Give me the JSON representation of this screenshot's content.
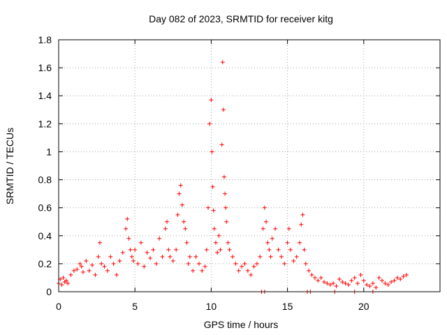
{
  "chart_data": {
    "type": "scatter",
    "title": "Day 082 of 2023, SRMTID for receiver kitg",
    "xlabel": "GPS time / hours",
    "ylabel": "SRMTID / TECUs",
    "xlim": [
      0,
      25
    ],
    "ylim": [
      0,
      1.8
    ],
    "xticks": [
      0,
      5,
      10,
      15,
      20
    ],
    "xtick_labels": [
      "0",
      "5",
      "10",
      "15",
      "20"
    ],
    "yticks": [
      0,
      0.2,
      0.4,
      0.6,
      0.8,
      1,
      1.2,
      1.4,
      1.6,
      1.8
    ],
    "ytick_labels": [
      "0",
      "0.2",
      "0.4",
      "0.6",
      "0.8",
      "1",
      "1.2",
      "1.4",
      "1.6",
      "1.8"
    ],
    "grid": true,
    "marker": "plus",
    "series": [
      {
        "name": "SRMTID",
        "color": "#ff0000",
        "x": [
          0.0,
          0.1,
          0.2,
          0.3,
          0.4,
          0.5,
          0.6,
          0.8,
          1.0,
          1.2,
          1.4,
          1.5,
          1.6,
          1.8,
          2.0,
          2.2,
          2.4,
          2.6,
          2.7,
          2.8,
          3.0,
          3.2,
          3.4,
          3.6,
          3.8,
          4.0,
          4.2,
          4.4,
          4.5,
          4.6,
          4.7,
          4.8,
          4.9,
          5.0,
          5.2,
          5.4,
          5.6,
          5.8,
          6.0,
          6.2,
          6.4,
          6.6,
          6.8,
          7.0,
          7.1,
          7.2,
          7.3,
          7.5,
          7.7,
          7.8,
          7.9,
          8.0,
          8.1,
          8.2,
          8.3,
          8.4,
          8.5,
          8.6,
          8.8,
          9.0,
          9.2,
          9.4,
          9.6,
          9.7,
          9.8,
          9.9,
          10.0,
          10.05,
          10.1,
          10.15,
          10.2,
          10.3,
          10.4,
          10.5,
          10.6,
          10.7,
          10.75,
          10.8,
          10.85,
          10.9,
          10.95,
          11.0,
          11.1,
          11.2,
          11.4,
          11.6,
          11.8,
          12.0,
          12.2,
          12.4,
          12.6,
          12.8,
          13.0,
          13.2,
          13.4,
          13.5,
          13.6,
          13.7,
          13.8,
          13.9,
          14.0,
          14.2,
          14.4,
          14.6,
          14.8,
          15.0,
          15.1,
          15.2,
          15.4,
          15.6,
          15.8,
          15.9,
          16.0,
          16.1,
          16.2,
          16.4,
          16.6,
          16.8,
          17.0,
          17.2,
          17.4,
          17.6,
          17.8,
          18.0,
          18.2,
          18.4,
          18.6,
          18.8,
          19.0,
          19.2,
          19.4,
          19.6,
          19.8,
          20.0,
          20.2,
          20.4,
          20.6,
          20.8,
          21.0,
          21.2,
          21.4,
          21.6,
          21.8,
          22.0,
          22.2,
          22.4,
          22.6,
          22.8,
          13.3,
          13.5,
          16.3,
          16.5,
          18.1,
          19.4,
          20.6
        ],
        "y": [
          0.06,
          0.09,
          0.05,
          0.1,
          0.07,
          0.08,
          0.06,
          0.12,
          0.15,
          0.16,
          0.2,
          0.18,
          0.14,
          0.22,
          0.15,
          0.19,
          0.12,
          0.25,
          0.35,
          0.2,
          0.18,
          0.15,
          0.25,
          0.2,
          0.12,
          0.22,
          0.28,
          0.45,
          0.52,
          0.38,
          0.3,
          0.25,
          0.22,
          0.3,
          0.2,
          0.35,
          0.18,
          0.28,
          0.24,
          0.3,
          0.2,
          0.38,
          0.25,
          0.45,
          0.5,
          0.3,
          0.25,
          0.22,
          0.3,
          0.55,
          0.7,
          0.76,
          0.62,
          0.5,
          0.45,
          0.35,
          0.2,
          0.25,
          0.15,
          0.25,
          0.2,
          0.15,
          0.18,
          0.3,
          0.6,
          1.2,
          1.37,
          1.0,
          0.75,
          0.58,
          0.45,
          0.35,
          0.28,
          0.4,
          0.3,
          1.05,
          1.64,
          1.3,
          0.82,
          0.7,
          0.6,
          0.5,
          0.35,
          0.3,
          0.25,
          0.2,
          0.15,
          0.18,
          0.2,
          0.15,
          0.12,
          0.18,
          0.2,
          0.25,
          0.45,
          0.6,
          0.5,
          0.35,
          0.3,
          0.25,
          0.38,
          0.45,
          0.3,
          0.25,
          0.2,
          0.35,
          0.45,
          0.3,
          0.22,
          0.25,
          0.35,
          0.48,
          0.55,
          0.3,
          0.2,
          0.15,
          0.12,
          0.1,
          0.08,
          0.1,
          0.07,
          0.06,
          0.05,
          0.06,
          0.04,
          0.09,
          0.07,
          0.06,
          0.05,
          0.08,
          0.1,
          0.06,
          0.12,
          0.08,
          0.05,
          0.04,
          0.06,
          0.03,
          0.1,
          0.08,
          0.06,
          0.05,
          0.07,
          0.08,
          0.1,
          0.09,
          0.11,
          0.12,
          0.0,
          0.0,
          0.0,
          0.0,
          0.0,
          0.0,
          0.0
        ]
      }
    ]
  }
}
